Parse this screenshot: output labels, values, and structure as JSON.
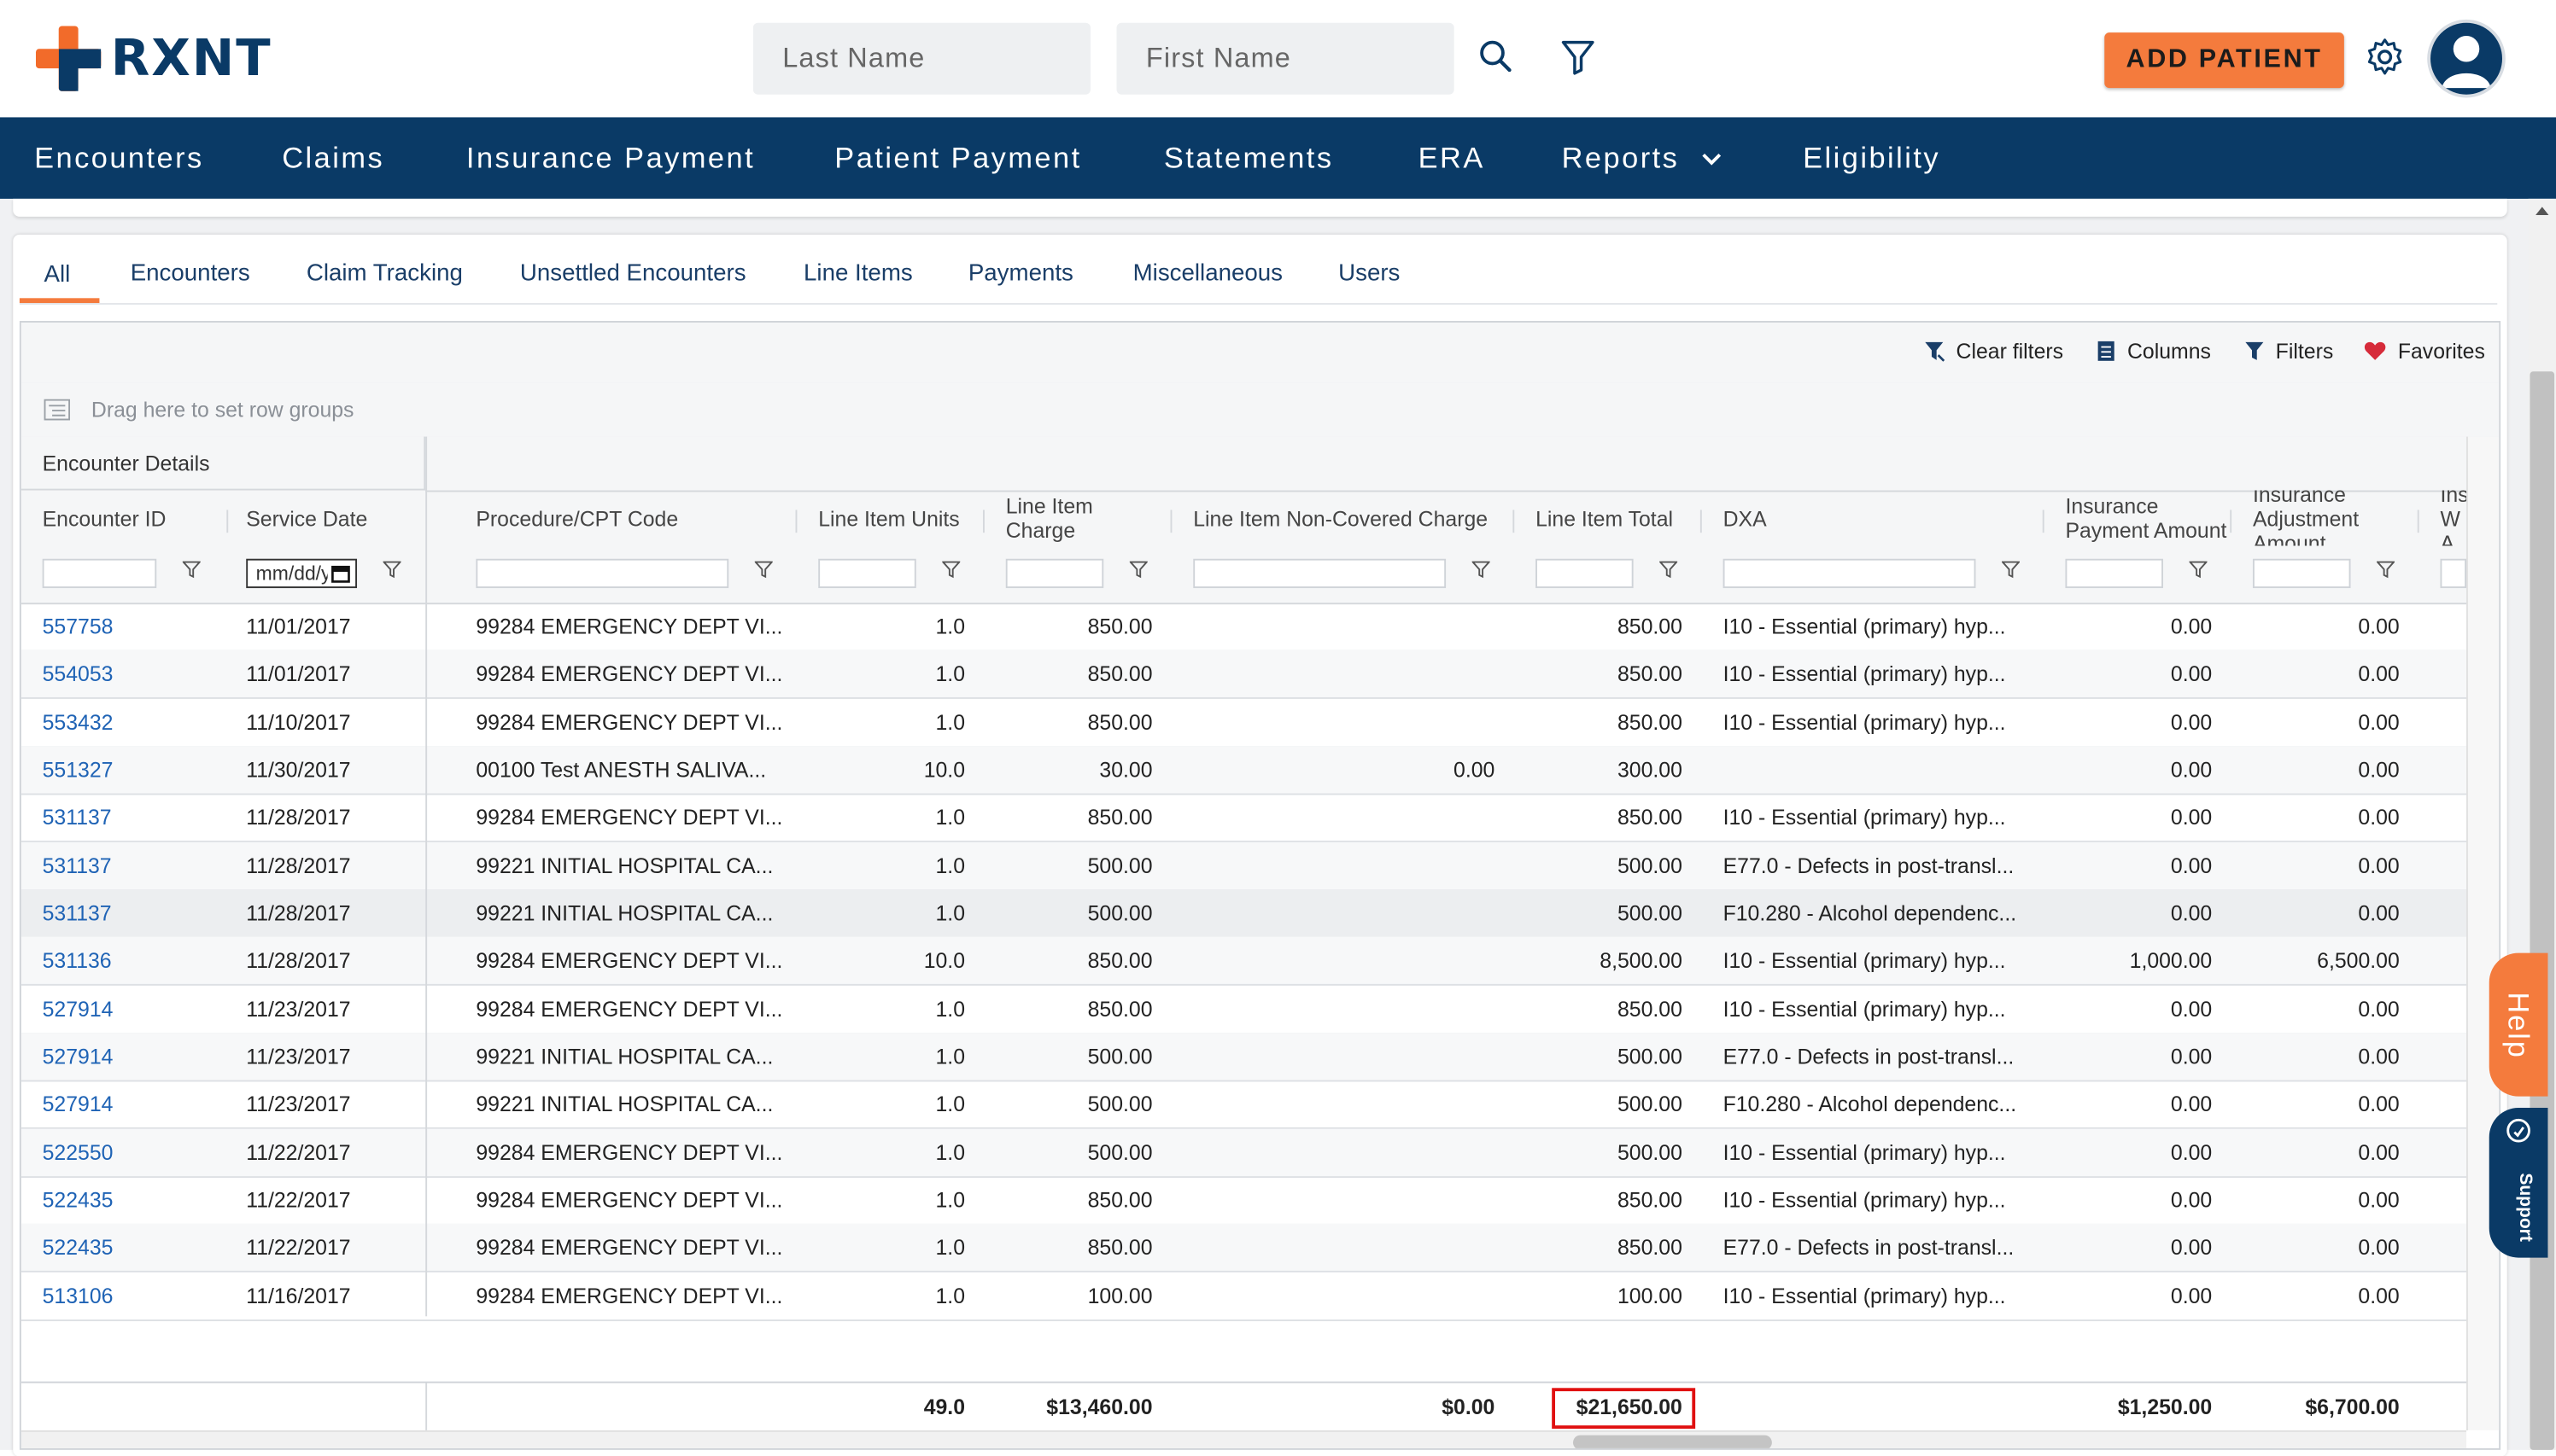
{
  "app": {
    "name": "RXNT",
    "colors": {
      "brand_orange": "#f47b3d",
      "brand_navy": "#0a3a66",
      "link": "#1f63b5",
      "highlight_box": "#e01010"
    }
  },
  "header": {
    "last_name_placeholder": "Last Name",
    "first_name_placeholder": "First Name",
    "add_patient_label": "ADD PATIENT",
    "icons": [
      "search-icon",
      "filter-icon",
      "gear-icon",
      "user-avatar-icon"
    ]
  },
  "nav": {
    "items": [
      "Encounters",
      "Claims",
      "Insurance Payment",
      "Patient Payment",
      "Statements",
      "ERA",
      "Reports",
      "Eligibility"
    ]
  },
  "tabs": {
    "items": [
      "All",
      "Encounters",
      "Claim Tracking",
      "Unsettled Encounters",
      "Line Items",
      "Payments",
      "Miscellaneous",
      "Users"
    ],
    "active": "All"
  },
  "toolbar": {
    "clear_filters": "Clear filters",
    "columns": "Columns",
    "filters": "Filters",
    "favorites": "Favorites"
  },
  "row_groups_hint": "Drag here to set row groups",
  "grid": {
    "group_header": "Encounter Details",
    "columns": {
      "encounter_id": "Encounter ID",
      "service_date": "Service Date",
      "procedure": "Procedure/CPT Code",
      "units": "Line Item Units",
      "charge": "Line Item Charge",
      "noncovered": "Line Item Non-Covered Charge",
      "total": "Line Item Total",
      "dxa": "DXA",
      "ins_payment": "Insurance Payment Amount",
      "ins_adjust": "Insurance Adjustment Amount",
      "ins_w": "Ins W A"
    },
    "date_filter_placeholder": "mm/dd/yyyy",
    "rows": [
      {
        "id": "557758",
        "date": "11/01/2017",
        "proc": "99284 EMERGENCY DEPT VI...",
        "units": "1.0",
        "charge": "850.00",
        "noncov": "",
        "total": "850.00",
        "dxa": "I10 - Essential (primary) hyp...",
        "inspay": "0.00",
        "insadj": "0.00"
      },
      {
        "id": "554053",
        "date": "11/01/2017",
        "proc": "99284 EMERGENCY DEPT VI...",
        "units": "1.0",
        "charge": "850.00",
        "noncov": "",
        "total": "850.00",
        "dxa": "I10 - Essential (primary) hyp...",
        "inspay": "0.00",
        "insadj": "0.00"
      },
      {
        "id": "553432",
        "date": "11/10/2017",
        "proc": "99284 EMERGENCY DEPT VI...",
        "units": "1.0",
        "charge": "850.00",
        "noncov": "",
        "total": "850.00",
        "dxa": "I10 - Essential (primary) hyp...",
        "inspay": "0.00",
        "insadj": "0.00"
      },
      {
        "id": "551327",
        "date": "11/30/2017",
        "proc": "00100 Test ANESTH SALIVA...",
        "units": "10.0",
        "charge": "30.00",
        "noncov": "0.00",
        "total": "300.00",
        "dxa": "",
        "inspay": "0.00",
        "insadj": "0.00"
      },
      {
        "id": "531137",
        "date": "11/28/2017",
        "proc": "99284 EMERGENCY DEPT VI...",
        "units": "1.0",
        "charge": "850.00",
        "noncov": "",
        "total": "850.00",
        "dxa": "I10 - Essential (primary) hyp...",
        "inspay": "0.00",
        "insadj": "0.00"
      },
      {
        "id": "531137",
        "date": "11/28/2017",
        "proc": "99221 INITIAL HOSPITAL CA...",
        "units": "1.0",
        "charge": "500.00",
        "noncov": "",
        "total": "500.00",
        "dxa": "E77.0 - Defects in post-transl...",
        "inspay": "0.00",
        "insadj": "0.00"
      },
      {
        "id": "531137",
        "date": "11/28/2017",
        "proc": "99221 INITIAL HOSPITAL CA...",
        "units": "1.0",
        "charge": "500.00",
        "noncov": "",
        "total": "500.00",
        "dxa": "F10.280 - Alcohol dependenc...",
        "inspay": "0.00",
        "insadj": "0.00"
      },
      {
        "id": "531136",
        "date": "11/28/2017",
        "proc": "99284 EMERGENCY DEPT VI...",
        "units": "10.0",
        "charge": "850.00",
        "noncov": "",
        "total": "8,500.00",
        "dxa": "I10 - Essential (primary) hyp...",
        "inspay": "1,000.00",
        "insadj": "6,500.00"
      },
      {
        "id": "527914",
        "date": "11/23/2017",
        "proc": "99284 EMERGENCY DEPT VI...",
        "units": "1.0",
        "charge": "850.00",
        "noncov": "",
        "total": "850.00",
        "dxa": "I10 - Essential (primary) hyp...",
        "inspay": "0.00",
        "insadj": "0.00"
      },
      {
        "id": "527914",
        "date": "11/23/2017",
        "proc": "99221 INITIAL HOSPITAL CA...",
        "units": "1.0",
        "charge": "500.00",
        "noncov": "",
        "total": "500.00",
        "dxa": "E77.0 - Defects in post-transl...",
        "inspay": "0.00",
        "insadj": "0.00"
      },
      {
        "id": "527914",
        "date": "11/23/2017",
        "proc": "99221 INITIAL HOSPITAL CA...",
        "units": "1.0",
        "charge": "500.00",
        "noncov": "",
        "total": "500.00",
        "dxa": "F10.280 - Alcohol dependenc...",
        "inspay": "0.00",
        "insadj": "0.00"
      },
      {
        "id": "522550",
        "date": "11/22/2017",
        "proc": "99284 EMERGENCY DEPT VI...",
        "units": "1.0",
        "charge": "500.00",
        "noncov": "",
        "total": "500.00",
        "dxa": "I10 - Essential (primary) hyp...",
        "inspay": "0.00",
        "insadj": "0.00"
      },
      {
        "id": "522435",
        "date": "11/22/2017",
        "proc": "99284 EMERGENCY DEPT VI...",
        "units": "1.0",
        "charge": "850.00",
        "noncov": "",
        "total": "850.00",
        "dxa": "I10 - Essential (primary) hyp...",
        "inspay": "0.00",
        "insadj": "0.00"
      },
      {
        "id": "522435",
        "date": "11/22/2017",
        "proc": "99284 EMERGENCY DEPT VI...",
        "units": "1.0",
        "charge": "850.00",
        "noncov": "",
        "total": "850.00",
        "dxa": "E77.0 - Defects in post-transl...",
        "inspay": "0.00",
        "insadj": "0.00"
      },
      {
        "id": "513106",
        "date": "11/16/2017",
        "proc": "99284 EMERGENCY DEPT VI...",
        "units": "1.0",
        "charge": "100.00",
        "noncov": "",
        "total": "100.00",
        "dxa": "I10 - Essential (primary) hyp...",
        "inspay": "0.00",
        "insadj": "0.00"
      }
    ],
    "totals": {
      "units": "49.0",
      "charge": "$13,460.00",
      "noncov": "$0.00",
      "total": "$21,650.00",
      "inspay": "$1,250.00",
      "insadj": "$6,700.00"
    }
  },
  "side_widgets": {
    "help": "Help",
    "support": "Support"
  }
}
